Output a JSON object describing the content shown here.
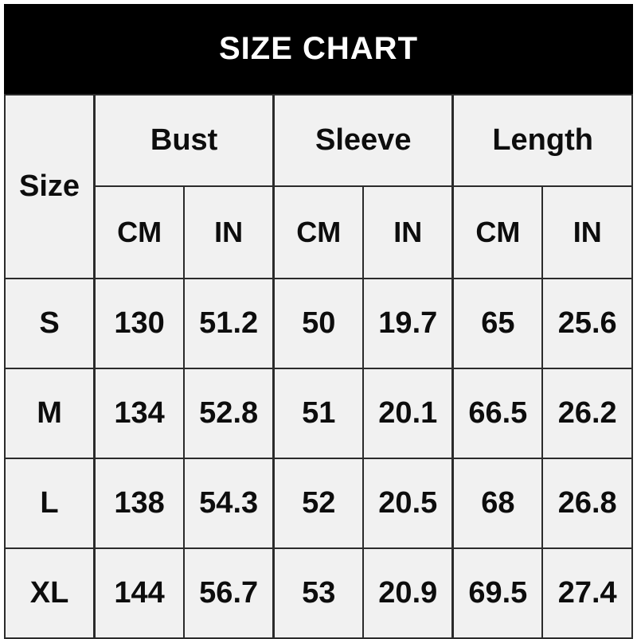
{
  "banner": {
    "title": "SIZE CHART"
  },
  "colors": {
    "banner_bg": "#000000",
    "banner_text": "#ffffff",
    "cell_bg": "#f1f1f1",
    "border": "#2b2b2b",
    "page_bg": "#ffffff"
  },
  "chart_data": {
    "type": "table",
    "title": "SIZE CHART",
    "size_column_header": "Size",
    "column_groups": [
      {
        "label": "Bust"
      },
      {
        "label": "Sleeve"
      },
      {
        "label": "Length"
      }
    ],
    "unit_row": [
      "CM",
      "IN",
      "CM",
      "IN",
      "CM",
      "IN"
    ],
    "rows": [
      {
        "size": "S",
        "values": [
          "130",
          "51.2",
          "50",
          "19.7",
          "65",
          "25.6"
        ]
      },
      {
        "size": "M",
        "values": [
          "134",
          "52.8",
          "51",
          "20.1",
          "66.5",
          "26.2"
        ]
      },
      {
        "size": "L",
        "values": [
          "138",
          "54.3",
          "52",
          "20.5",
          "68",
          "26.8"
        ]
      },
      {
        "size": "XL",
        "values": [
          "144",
          "56.7",
          "53",
          "20.9",
          "69.5",
          "27.4"
        ]
      }
    ]
  }
}
